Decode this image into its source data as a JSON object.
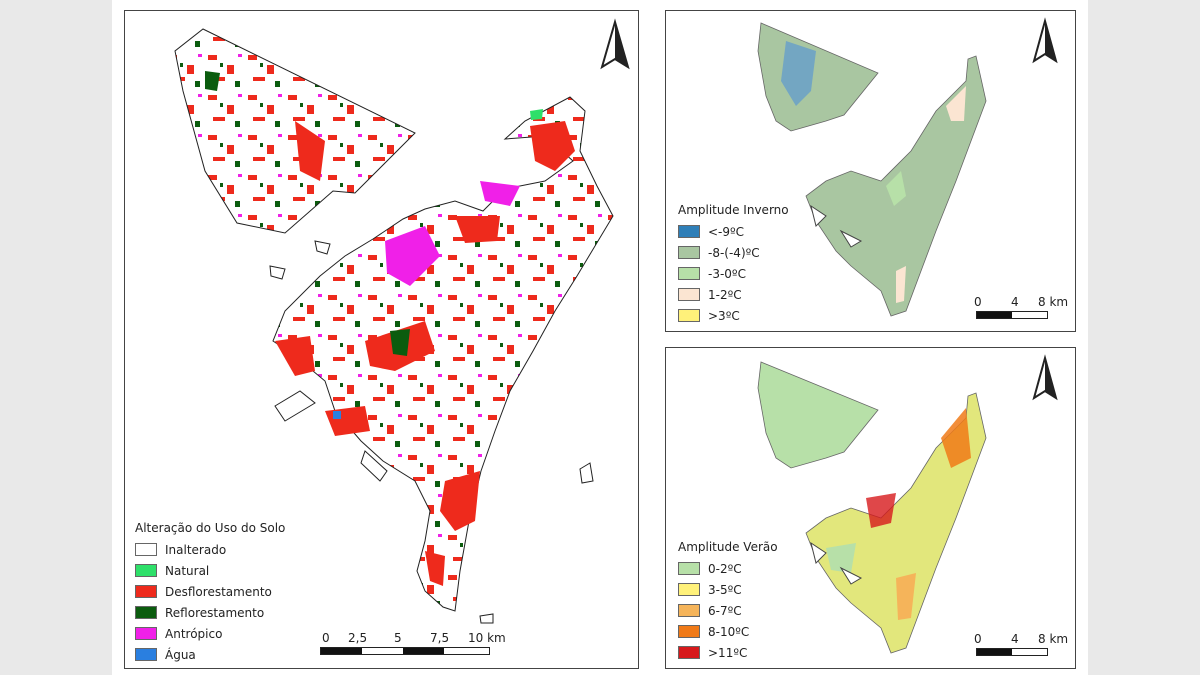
{
  "map_main": {
    "legend_title": "Alteração do Uso do Solo",
    "legend": [
      {
        "label": "Inalterado",
        "color": "#ffffff"
      },
      {
        "label": "Natural",
        "color": "#2ee06a"
      },
      {
        "label": "Desflorestamento",
        "color": "#ee2a1c"
      },
      {
        "label": "Reflorestamento",
        "color": "#0b5c0e"
      },
      {
        "label": "Antrópico",
        "color": "#f020e8"
      },
      {
        "label": "Água",
        "color": "#2a7fe0"
      }
    ],
    "scale_labels": [
      "0",
      "2,5",
      "5",
      "7,5",
      "10 km"
    ]
  },
  "map_winter": {
    "legend_title": "Amplitude Inverno",
    "legend": [
      {
        "label": "<-9ºC",
        "color": "#2f7fb8"
      },
      {
        "label": "-8-(-4)ºC",
        "color": "#a9c6a1"
      },
      {
        "label": "-3-0ºC",
        "color": "#b7e0a8"
      },
      {
        "label": "1-2ºC",
        "color": "#fbe5d2"
      },
      {
        "label": ">3ºC",
        "color": "#fff17a"
      }
    ],
    "scale_labels": [
      "0",
      "4",
      "8 km"
    ],
    "fill_color": "#a9c6a1"
  },
  "map_summer": {
    "legend_title": "Amplitude Verão",
    "legend": [
      {
        "label": "0-2ºC",
        "color": "#b7e0a8"
      },
      {
        "label": "3-5ºC",
        "color": "#fff17a"
      },
      {
        "label": "6-7ºC",
        "color": "#f5b45a"
      },
      {
        "label": "8-10ºC",
        "color": "#f07a18"
      },
      {
        "label": ">11ºC",
        "color": "#d7191c"
      }
    ],
    "scale_labels": [
      "0",
      "4",
      "8 km"
    ],
    "fill_color": "#e2e77c"
  },
  "north_arrow": "north-arrow-icon"
}
